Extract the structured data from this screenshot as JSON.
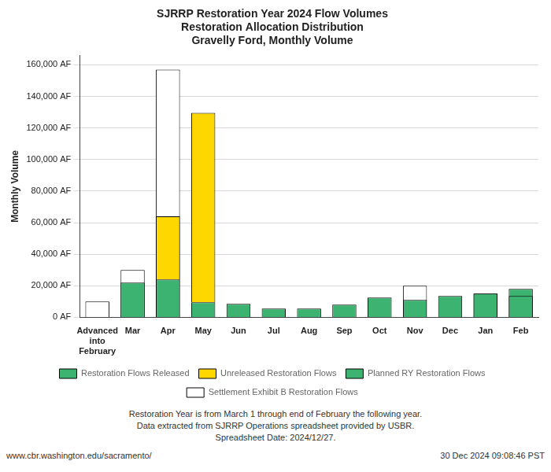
{
  "chart_data": {
    "type": "bar",
    "title": [
      "SJRRP Restoration Year 2024 Flow Volumes",
      "Restoration Allocation Distribution",
      "Gravelly Ford, Monthly Volume"
    ],
    "ylabel": "Monthly Volume",
    "categories": [
      "Advanced\ninto\nFebruary",
      "Mar",
      "Apr",
      "May",
      "Jun",
      "Jul",
      "Aug",
      "Sep",
      "Oct",
      "Nov",
      "Dec",
      "Jan",
      "Feb"
    ],
    "series": [
      {
        "name": "Restoration Flows Released",
        "color": "#3CB371",
        "values": [
          0,
          22000,
          24000,
          9500,
          8500,
          5500,
          5500,
          8000,
          12500,
          11000,
          13500,
          15000,
          13500
        ]
      },
      {
        "name": "Unreleased Restoration Flows",
        "color": "#FFD700",
        "stacked": true,
        "values": [
          0,
          0,
          40000,
          120000,
          0,
          0,
          0,
          0,
          0,
          0,
          0,
          0,
          0
        ]
      },
      {
        "name": "Planned RY Restoration Flows",
        "color": "#3CB371",
        "values": [
          0,
          0,
          0,
          0,
          0,
          0,
          0,
          0,
          0,
          0,
          0,
          15000,
          18000
        ]
      },
      {
        "name": "Settlement Exhibit B Restoration Flows",
        "color": "#FFFFFF",
        "values": [
          10000,
          30000,
          157000,
          0,
          0,
          0,
          0,
          0,
          0,
          20000,
          0,
          0,
          0
        ]
      }
    ],
    "ylim": [
      0,
      166000
    ],
    "yticks": [
      {
        "value": 0,
        "label": "0 AF"
      },
      {
        "value": 20000,
        "label": "20,000 AF"
      },
      {
        "value": 40000,
        "label": "40,000 AF"
      },
      {
        "value": 60000,
        "label": "60,000 AF"
      },
      {
        "value": 80000,
        "label": "80,000 AF"
      },
      {
        "value": 100000,
        "label": "100,000 AF"
      },
      {
        "value": 120000,
        "label": "120,000 AF"
      },
      {
        "value": 140000,
        "label": "140,000 AF"
      },
      {
        "value": 160000,
        "label": "160,000 AF"
      }
    ],
    "grid": "y",
    "legend": "bottom",
    "annotations": [
      "Restoration Year is from March 1 through end of February the following year.",
      "Data extracted from SJRRP Operations spreadsheet provided by USBR.",
      "Spreadsheet Date: 2024/12/27.",
      "www.cbr.washington.edu/sacramento/",
      "30 Dec 2024 09:08:46 PST"
    ]
  }
}
